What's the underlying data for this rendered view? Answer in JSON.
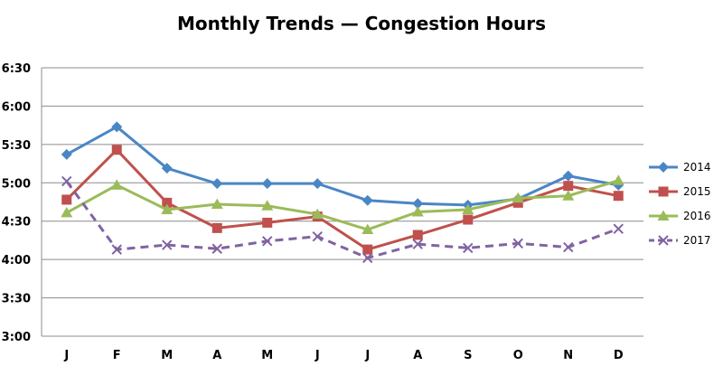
{
  "chart_data": {
    "type": "line",
    "title": "Monthly Trends — Congestion Hours",
    "xlabel": "",
    "ylabel": "",
    "categories": [
      "J",
      "F",
      "M",
      "A",
      "M",
      "J",
      "J",
      "A",
      "S",
      "O",
      "N",
      "D"
    ],
    "y_ticks": [
      "3:00",
      "3:30",
      "4:00",
      "4:30",
      "5:00",
      "5:30",
      "6:00",
      "6:30"
    ],
    "ylim": [
      3.0,
      6.5
    ],
    "grid": true,
    "legend_position": "right",
    "series": [
      {
        "name": "2014",
        "color": "#4a86c5",
        "marker": "diamond",
        "dash": false,
        "values": [
          5.37,
          5.73,
          5.19,
          4.99,
          4.99,
          4.99,
          4.77,
          4.73,
          4.71,
          4.79,
          5.09,
          4.97
        ]
      },
      {
        "name": "2015",
        "color": "#c0504d",
        "marker": "square",
        "dash": false,
        "values": [
          4.78,
          5.43,
          4.74,
          4.41,
          4.48,
          4.56,
          4.13,
          4.32,
          4.52,
          4.74,
          4.96,
          4.83
        ]
      },
      {
        "name": "2016",
        "color": "#9bbb59",
        "marker": "triangle",
        "dash": false,
        "values": [
          4.61,
          4.97,
          4.65,
          4.72,
          4.7,
          4.59,
          4.39,
          4.62,
          4.65,
          4.8,
          4.83,
          5.03
        ]
      },
      {
        "name": "2017",
        "color": "#8064a2",
        "marker": "x",
        "dash": true,
        "values": [
          5.02,
          4.13,
          4.19,
          4.14,
          4.24,
          4.3,
          4.02,
          4.2,
          4.15,
          4.21,
          4.16,
          4.4
        ]
      }
    ]
  }
}
